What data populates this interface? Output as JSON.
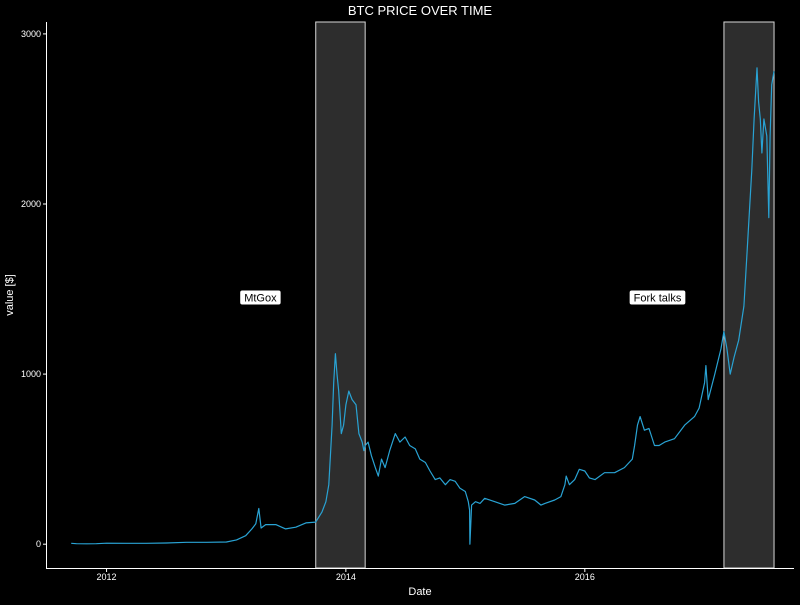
{
  "chart_data": {
    "type": "line",
    "title": "BTC PRICE OVER TIME",
    "xlabel": "Date",
    "ylabel": "value [$]",
    "x_ticks": [
      {
        "date": "2012-01-01",
        "label": "2012"
      },
      {
        "date": "2014-01-01",
        "label": "2014"
      },
      {
        "date": "2016-01-01",
        "label": "2016"
      }
    ],
    "y_ticks": [
      {
        "value": 0,
        "label": "0"
      },
      {
        "value": 1000,
        "label": "1000"
      },
      {
        "value": 2000,
        "label": "2000"
      },
      {
        "value": 3000,
        "label": "3000"
      }
    ],
    "xlim": [
      "2011-06-30",
      "2017-10-01"
    ],
    "ylim": [
      -140,
      3070
    ],
    "grid": false,
    "colors": {
      "background": "#000000",
      "line": "#29a3d4",
      "shade_fill": "#2d2d2d",
      "shade_stroke": "#d8d8d8",
      "axis": "#ffffff",
      "text": "#ffffff",
      "label_box": "#ffffff",
      "label_text": "#000000"
    },
    "shaded_regions": [
      {
        "start": "2013-10-01",
        "end": "2014-03-01"
      },
      {
        "start": "2017-03-01",
        "end": "2017-08-01"
      }
    ],
    "annotations": [
      {
        "text": "MtGox",
        "date": "2013-04-15",
        "value": 1450
      },
      {
        "text": "Fork talks",
        "date": "2016-08-10",
        "value": 1450
      }
    ],
    "series": [
      {
        "x": [
          "2011-09-15",
          "2011-10-01",
          "2011-11-01",
          "2011-12-01",
          "2012-01-01",
          "2012-03-01",
          "2012-05-01",
          "2012-07-01",
          "2012-09-01",
          "2012-11-01",
          "2013-01-01",
          "2013-02-01",
          "2013-03-01",
          "2013-03-20",
          "2013-04-01",
          "2013-04-10",
          "2013-04-17",
          "2013-05-01",
          "2013-06-01",
          "2013-07-01",
          "2013-08-01",
          "2013-09-01",
          "2013-10-01",
          "2013-10-20",
          "2013-11-01",
          "2013-11-10",
          "2013-11-20",
          "2013-11-25",
          "2013-11-30",
          "2013-12-05",
          "2013-12-10",
          "2013-12-18",
          "2013-12-25",
          "2014-01-01",
          "2014-01-10",
          "2014-01-20",
          "2014-02-01",
          "2014-02-10",
          "2014-02-20",
          "2014-02-25",
          "2014-03-01",
          "2014-03-10",
          "2014-03-20",
          "2014-04-01",
          "2014-04-10",
          "2014-04-20",
          "2014-05-01",
          "2014-05-15",
          "2014-06-01",
          "2014-06-15",
          "2014-07-01",
          "2014-07-15",
          "2014-08-01",
          "2014-08-15",
          "2014-09-01",
          "2014-09-15",
          "2014-10-01",
          "2014-10-15",
          "2014-11-01",
          "2014-11-15",
          "2014-12-01",
          "2014-12-15",
          "2015-01-01",
          "2015-01-10",
          "2015-01-14",
          "2015-01-15",
          "2015-01-20",
          "2015-02-01",
          "2015-02-15",
          "2015-03-01",
          "2015-04-01",
          "2015-05-01",
          "2015-06-01",
          "2015-07-01",
          "2015-08-01",
          "2015-08-20",
          "2015-09-01",
          "2015-10-01",
          "2015-10-20",
          "2015-11-01",
          "2015-11-05",
          "2015-11-15",
          "2015-12-01",
          "2015-12-15",
          "2016-01-01",
          "2016-01-15",
          "2016-02-01",
          "2016-03-01",
          "2016-04-01",
          "2016-05-01",
          "2016-05-25",
          "2016-06-01",
          "2016-06-10",
          "2016-06-18",
          "2016-07-01",
          "2016-07-15",
          "2016-08-01",
          "2016-08-15",
          "2016-09-01",
          "2016-10-01",
          "2016-11-01",
          "2016-12-01",
          "2016-12-15",
          "2017-01-01",
          "2017-01-05",
          "2017-01-12",
          "2017-02-01",
          "2017-02-20",
          "2017-03-01",
          "2017-03-10",
          "2017-03-20",
          "2017-04-01",
          "2017-04-15",
          "2017-05-01",
          "2017-05-10",
          "2017-05-25",
          "2017-06-01",
          "2017-06-10",
          "2017-06-15",
          "2017-06-20",
          "2017-06-25",
          "2017-07-01",
          "2017-07-10",
          "2017-07-16",
          "2017-07-20",
          "2017-07-25",
          "2017-08-01"
        ],
        "y": [
          5,
          3,
          2,
          3,
          6,
          5,
          5,
          7,
          11,
          11,
          13,
          25,
          50,
          90,
          120,
          210,
          95,
          115,
          115,
          90,
          100,
          125,
          130,
          190,
          250,
          350,
          700,
          950,
          1120,
          1000,
          900,
          650,
          700,
          820,
          900,
          850,
          820,
          650,
          600,
          550,
          580,
          600,
          520,
          450,
          400,
          500,
          450,
          550,
          650,
          600,
          630,
          580,
          560,
          500,
          480,
          430,
          380,
          390,
          350,
          380,
          370,
          330,
          310,
          250,
          200,
          0,
          230,
          250,
          240,
          270,
          250,
          230,
          240,
          280,
          260,
          230,
          240,
          260,
          280,
          350,
          400,
          350,
          380,
          440,
          430,
          390,
          380,
          420,
          420,
          450,
          500,
          580,
          700,
          750,
          670,
          680,
          580,
          580,
          600,
          620,
          700,
          750,
          800,
          950,
          1050,
          850,
          1000,
          1150,
          1250,
          1150,
          1000,
          1100,
          1200,
          1400,
          1700,
          2200,
          2500,
          2800,
          2600,
          2500,
          2300,
          2500,
          2400,
          1920,
          2400,
          2700,
          2780
        ]
      }
    ]
  }
}
